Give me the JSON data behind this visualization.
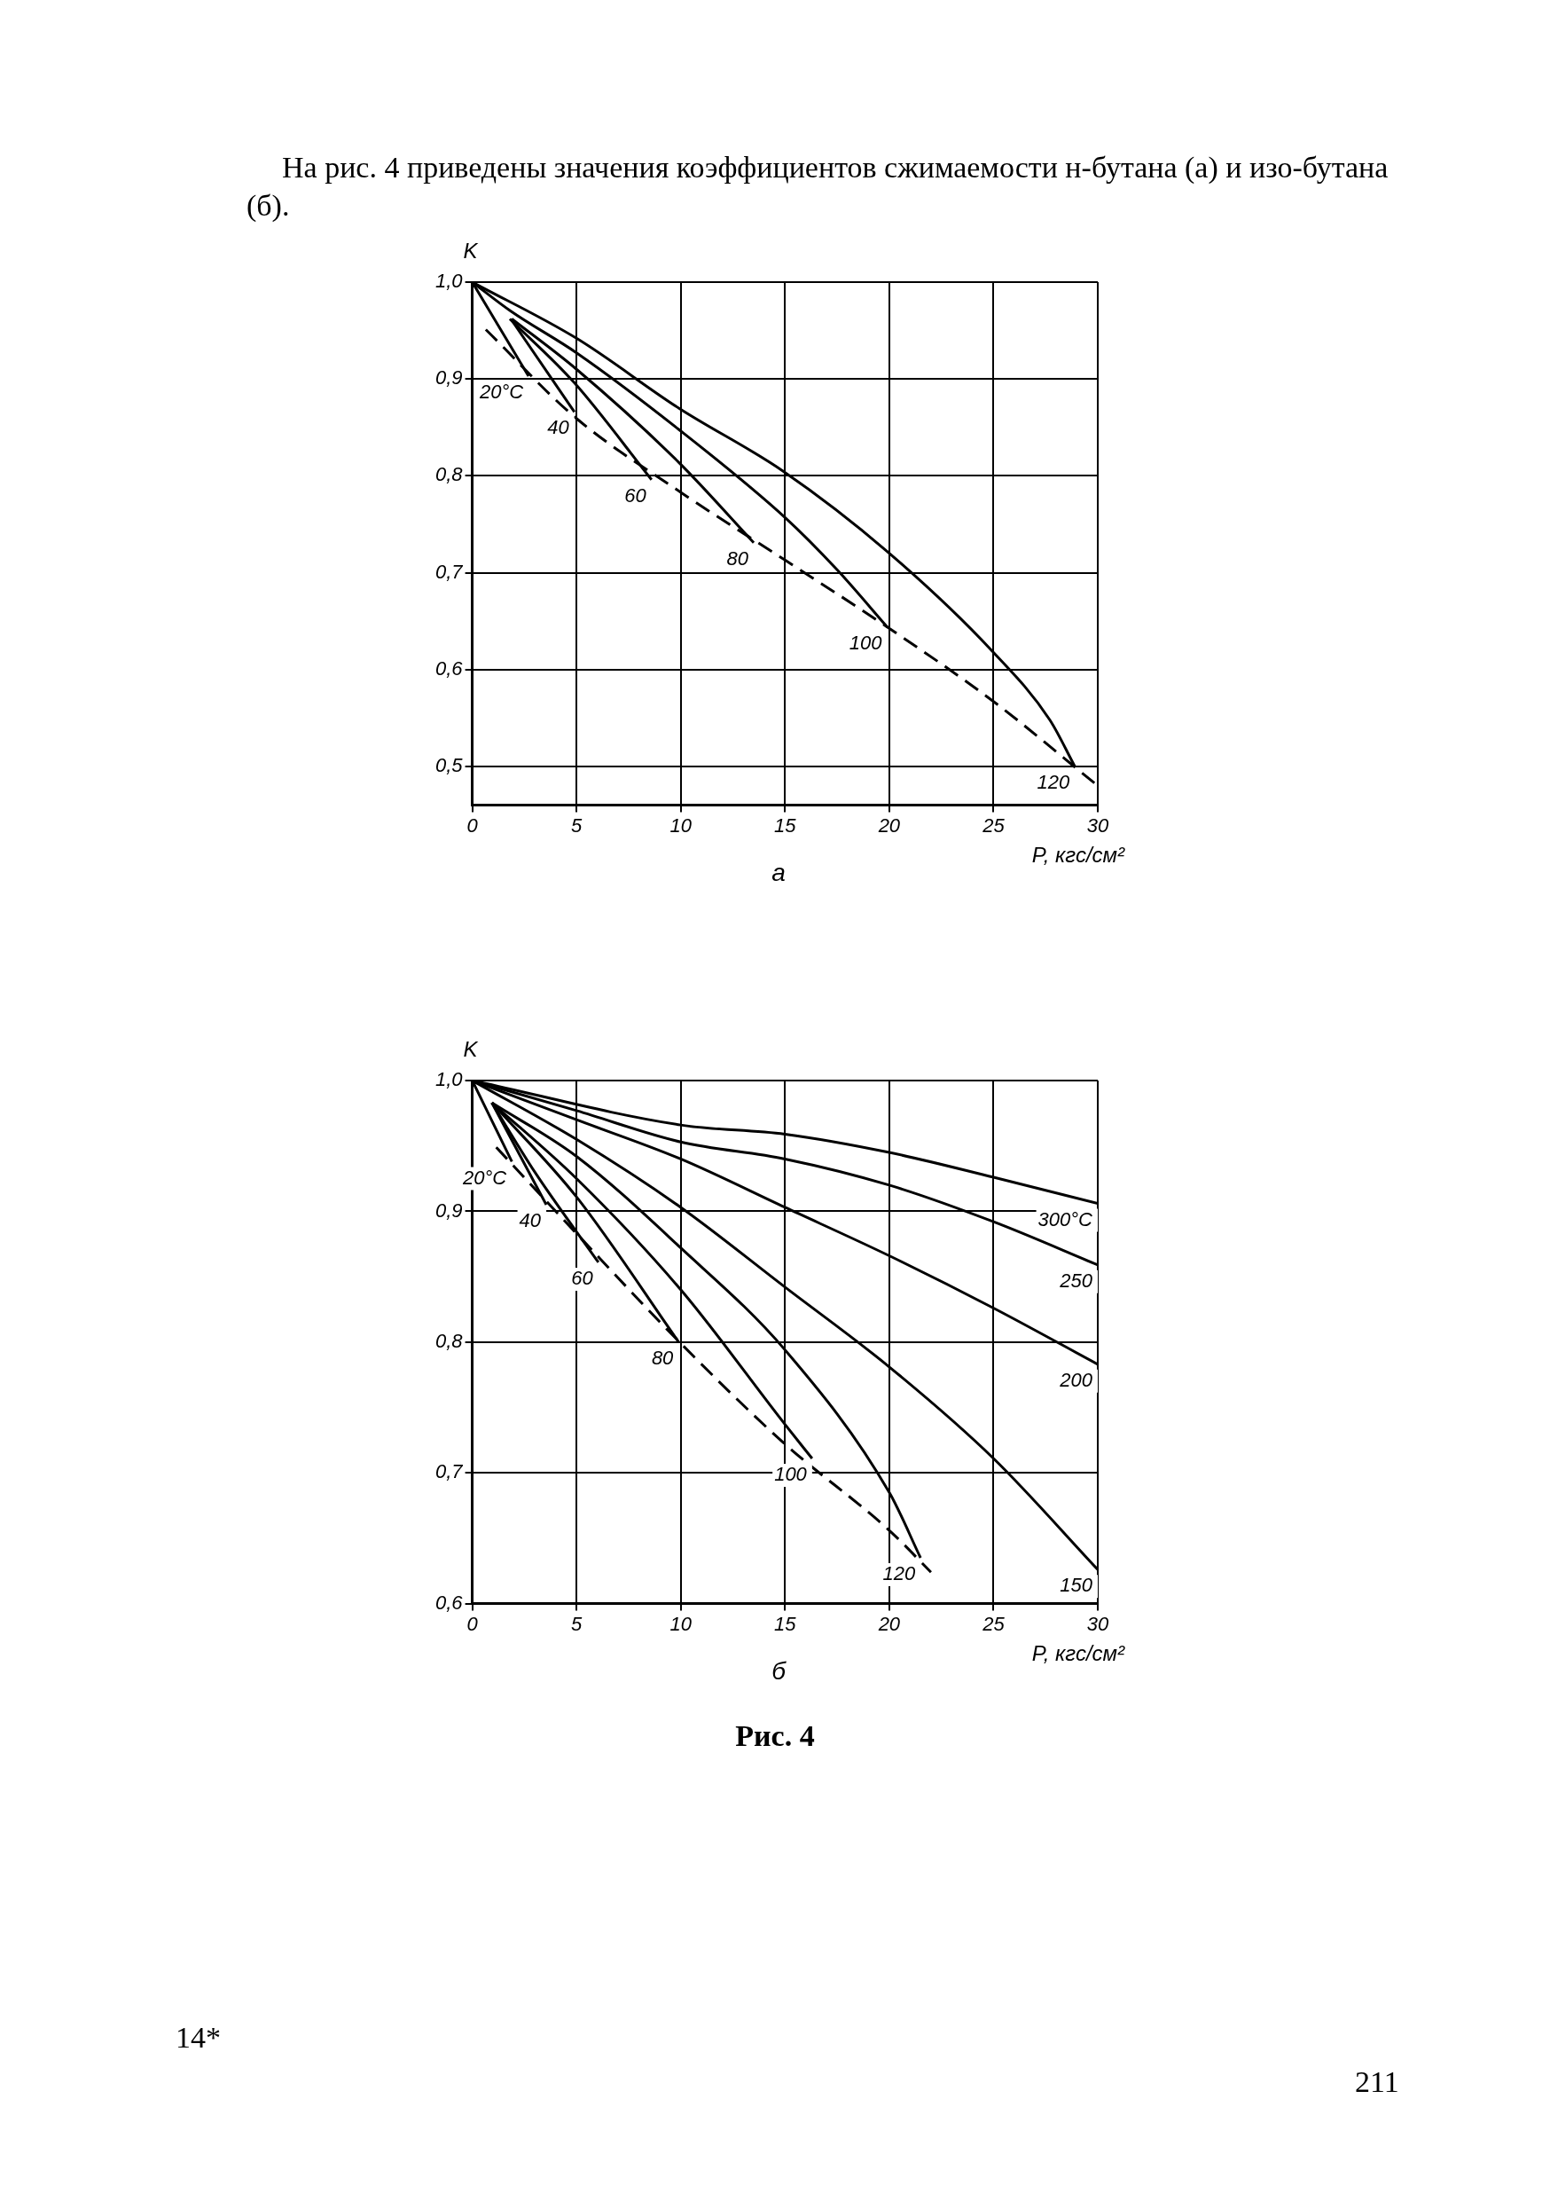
{
  "chart_data": [
    {
      "type": "line",
      "title": "а",
      "xlabel": "P, кгс/см²",
      "ylabel": "K",
      "marker": "none",
      "grid": true,
      "legend": false,
      "xlim": [
        0,
        30
      ],
      "ylim": [
        0.46,
        1.0
      ],
      "xticks": [
        0,
        5,
        10,
        15,
        20,
        25,
        30
      ],
      "yticks": [
        {
          "value": 0.5,
          "label": "0,5"
        },
        {
          "value": 0.6,
          "label": "0,6"
        },
        {
          "value": 0.7,
          "label": "0,7"
        },
        {
          "value": 0.8,
          "label": "0,8"
        },
        {
          "value": 0.9,
          "label": "0,9"
        },
        {
          "value": 1.0,
          "label": "1,0"
        }
      ],
      "annotations": [
        "На рис. 4 приведены значения коэффициентов сжимаемости н-бутана (а) и изо-бутана (б)."
      ],
      "series": [
        {
          "name": "20°C",
          "color": "#000000",
          "line_style": "solid",
          "x": [
            0,
            2.7
          ],
          "values": [
            1.0,
            0.903
          ]
        },
        {
          "name": "40",
          "color": "#000000",
          "line_style": "solid",
          "x": [
            1.85,
            4.9
          ],
          "values": [
            0.962,
            0.866
          ]
        },
        {
          "name": "60",
          "color": "#000000",
          "line_style": "solid",
          "x": [
            1.8,
            4.9,
            8.6
          ],
          "values": [
            0.962,
            0.896,
            0.796
          ]
        },
        {
          "name": "80",
          "color": "#000000",
          "line_style": "solid",
          "x": [
            1.9,
            5,
            9.9,
            13.5
          ],
          "values": [
            0.962,
            0.91,
            0.814,
            0.731
          ]
        },
        {
          "name": "100",
          "color": "#000000",
          "line_style": "solid",
          "x": [
            0,
            1.85,
            5,
            9.9,
            15,
            17.5,
            19.9
          ],
          "values": [
            1.0,
            0.97,
            0.927,
            0.848,
            0.757,
            0.703,
            0.644
          ]
        },
        {
          "name": "120",
          "color": "#000000",
          "line_style": "solid",
          "x": [
            0,
            5,
            9.9,
            14.9,
            19.9,
            24.9,
            27.7,
            28.9
          ],
          "values": [
            1.0,
            0.942,
            0.87,
            0.805,
            0.722,
            0.62,
            0.548,
            0.5
          ]
        },
        {
          "color": "#000000",
          "line_style": "dashed",
          "x": [
            0.65,
            4.9,
            10,
            15,
            19.9,
            25,
            30
          ],
          "values": [
            0.951,
            0.861,
            0.783,
            0.713,
            0.644,
            0.567,
            0.48
          ]
        }
      ]
    },
    {
      "type": "line",
      "title": "б",
      "xlabel": "P, кгс/см²",
      "ylabel": "K",
      "marker": "none",
      "grid": true,
      "legend": false,
      "xlim": [
        0,
        30
      ],
      "ylim": [
        0.6,
        1.0
      ],
      "xticks": [
        0,
        5,
        10,
        15,
        20,
        25,
        30
      ],
      "yticks": [
        {
          "value": 0.6,
          "label": "0,6"
        },
        {
          "value": 0.7,
          "label": "0,7"
        },
        {
          "value": 0.8,
          "label": "0,8"
        },
        {
          "value": 0.9,
          "label": "0,9"
        },
        {
          "value": 1.0,
          "label": "1,0"
        }
      ],
      "annotations": [
        "Рис. 4",
        "14*",
        "211"
      ],
      "series": [
        {
          "name": "300°C",
          "color": "#000000",
          "line_style": "solid",
          "x": [
            0,
            10,
            15,
            20,
            25,
            30
          ],
          "values": [
            1.0,
            0.966,
            0.959,
            0.945,
            0.926,
            0.906
          ]
        },
        {
          "name": "250",
          "color": "#000000",
          "line_style": "solid",
          "x": [
            0,
            5,
            10,
            15,
            20,
            25,
            30
          ],
          "values": [
            1.0,
            0.977,
            0.953,
            0.94,
            0.92,
            0.892,
            0.859
          ]
        },
        {
          "name": "200",
          "color": "#000000",
          "line_style": "solid",
          "x": [
            0,
            5,
            10,
            15,
            20,
            25,
            30
          ],
          "values": [
            1.0,
            0.97,
            0.94,
            0.903,
            0.866,
            0.826,
            0.783
          ]
        },
        {
          "name": "150",
          "color": "#000000",
          "line_style": "solid",
          "x": [
            0,
            5,
            10,
            15,
            20,
            25,
            30
          ],
          "values": [
            1.0,
            0.955,
            0.903,
            0.842,
            0.781,
            0.711,
            0.626
          ]
        },
        {
          "name": "120",
          "color": "#000000",
          "line_style": "solid",
          "x": [
            0.94,
            5,
            10,
            15,
            20,
            21.5
          ],
          "values": [
            0.983,
            0.942,
            0.872,
            0.794,
            0.685,
            0.635
          ]
        },
        {
          "name": "100",
          "color": "#000000",
          "line_style": "solid",
          "x": [
            0.94,
            5,
            10,
            15,
            16.3
          ],
          "values": [
            0.983,
            0.925,
            0.84,
            0.737,
            0.711
          ]
        },
        {
          "name": "80",
          "color": "#000000",
          "line_style": "solid",
          "x": [
            0.94,
            5,
            9.9
          ],
          "values": [
            0.983,
            0.911,
            0.8
          ]
        },
        {
          "name": "60",
          "color": "#000000",
          "line_style": "solid",
          "x": [
            0.94,
            3,
            6.05
          ],
          "values": [
            0.983,
            0.93,
            0.861
          ]
        },
        {
          "name": "40",
          "color": "#000000",
          "line_style": "solid",
          "x": [
            0.94,
            3.55
          ],
          "values": [
            0.983,
            0.905
          ]
        },
        {
          "name": "20°C",
          "color": "#000000",
          "line_style": "solid",
          "x": [
            0,
            1.9
          ],
          "values": [
            1.0,
            0.938
          ]
        },
        {
          "color": "#000000",
          "line_style": "dashed",
          "x": [
            1.15,
            5,
            10,
            15,
            20,
            22
          ],
          "values": [
            0.949,
            0.883,
            0.799,
            0.722,
            0.656,
            0.624
          ]
        }
      ]
    }
  ]
}
